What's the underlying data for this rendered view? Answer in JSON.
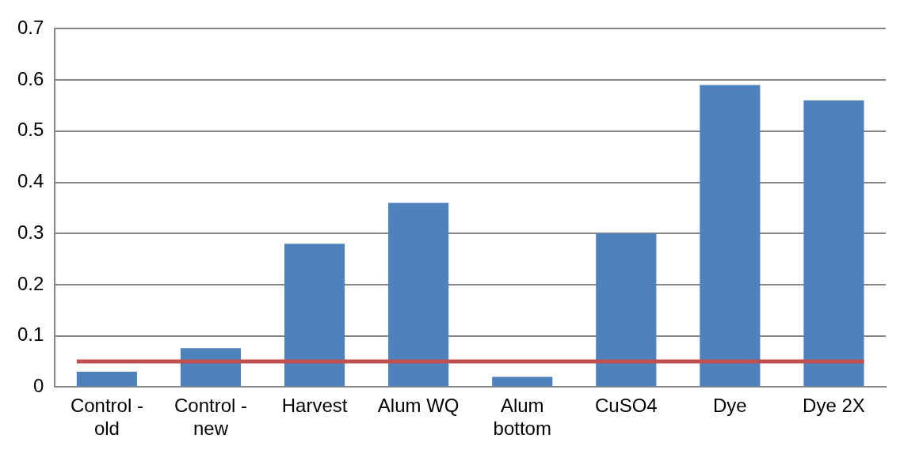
{
  "chart_data": {
    "type": "bar",
    "categories": [
      "Control - old",
      "Control - new",
      "Harvest",
      "Alum WQ",
      "Alum bottom",
      "CuSO4",
      "Dye",
      "Dye 2X"
    ],
    "values": [
      0.03,
      0.076,
      0.28,
      0.36,
      0.02,
      0.3,
      0.59,
      0.56
    ],
    "color": "#4f81bd",
    "ylim": [
      0,
      0.7
    ],
    "yticks": [
      0,
      0.1,
      0.2,
      0.3,
      0.4,
      0.5,
      0.6,
      0.7
    ],
    "grid": "y",
    "legend": false,
    "ref_lines": [
      {
        "axis": "y",
        "value": 0.05,
        "color": "#c0504d"
      }
    ]
  }
}
